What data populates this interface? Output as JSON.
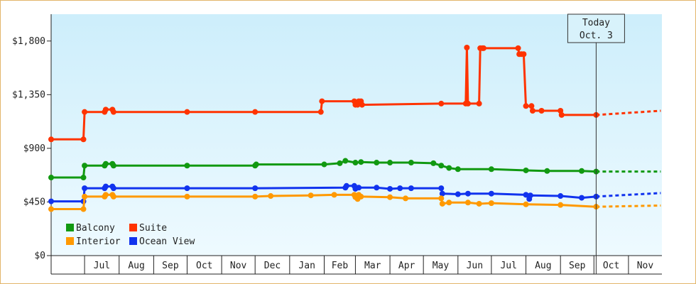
{
  "chart_data": {
    "type": "line",
    "title": "",
    "xlabel": "",
    "ylabel": "",
    "x_range": [
      "2024-06-01",
      "2025-11-30"
    ],
    "ylim": [
      0,
      2025
    ],
    "y_ticks": [
      0,
      450,
      900,
      1350,
      1800
    ],
    "y_tick_labels": [
      "$0",
      "$450",
      "$900",
      "$1,350",
      "$1,800"
    ],
    "months": [
      {
        "label": "Jul",
        "start": "2024-07-01",
        "end": "2024-07-31"
      },
      {
        "label": "Aug",
        "start": "2024-08-01",
        "end": "2024-08-31"
      },
      {
        "label": "Sep",
        "start": "2024-09-01",
        "end": "2024-09-30"
      },
      {
        "label": "Oct",
        "start": "2024-10-01",
        "end": "2024-10-31"
      },
      {
        "label": "Nov",
        "start": "2024-11-01",
        "end": "2024-11-30"
      },
      {
        "label": "Dec",
        "start": "2024-12-01",
        "end": "2024-12-31"
      },
      {
        "label": "Jan",
        "start": "2025-01-01",
        "end": "2025-01-31"
      },
      {
        "label": "Feb",
        "start": "2025-02-01",
        "end": "2025-02-28"
      },
      {
        "label": "Mar",
        "start": "2025-03-01",
        "end": "2025-03-31"
      },
      {
        "label": "Apr",
        "start": "2025-04-01",
        "end": "2025-04-30"
      },
      {
        "label": "May",
        "start": "2025-05-01",
        "end": "2025-05-31"
      },
      {
        "label": "Jun",
        "start": "2025-06-01",
        "end": "2025-06-30"
      },
      {
        "label": "Jul",
        "start": "2025-07-01",
        "end": "2025-07-31"
      },
      {
        "label": "Aug",
        "start": "2025-08-01",
        "end": "2025-08-31"
      },
      {
        "label": "Sep",
        "start": "2025-09-01",
        "end": "2025-09-30"
      },
      {
        "label": "Oct",
        "start": "2025-10-01",
        "end": "2025-10-31"
      },
      {
        "label": "Nov",
        "start": "2025-11-01",
        "end": "2025-11-30"
      }
    ],
    "today": {
      "date": "2025-10-03",
      "label_line1": "Today",
      "label_line2": "Oct. 3"
    },
    "grid": false,
    "legend_position": "bottom-left",
    "series": [
      {
        "name": "Suite",
        "color": "#ff3300",
        "points": [
          [
            "2024-06-01",
            975
          ],
          [
            "2024-06-30",
            975
          ],
          [
            "2024-07-01",
            1205
          ],
          [
            "2024-07-19",
            1205
          ],
          [
            "2024-07-20",
            1225
          ],
          [
            "2024-07-26",
            1225
          ],
          [
            "2024-07-27",
            1205
          ],
          [
            "2024-10-01",
            1205
          ],
          [
            "2024-12-01",
            1205
          ],
          [
            "2025-01-29",
            1205
          ],
          [
            "2025-01-30",
            1295
          ],
          [
            "2025-02-28",
            1295
          ],
          [
            "2025-03-01",
            1265
          ],
          [
            "2025-03-03",
            1265
          ],
          [
            "2025-03-04",
            1295
          ],
          [
            "2025-03-06",
            1295
          ],
          [
            "2025-03-07",
            1265
          ],
          [
            "2025-05-17",
            1275
          ],
          [
            "2025-06-08",
            1275
          ],
          [
            "2025-06-09",
            1745
          ],
          [
            "2025-06-10",
            1275
          ],
          [
            "2025-06-20",
            1275
          ],
          [
            "2025-06-21",
            1740
          ],
          [
            "2025-06-23",
            1740
          ],
          [
            "2025-06-24",
            1740
          ],
          [
            "2025-07-25",
            1740
          ],
          [
            "2025-07-26",
            1690
          ],
          [
            "2025-07-28",
            1690
          ],
          [
            "2025-07-30",
            1690
          ],
          [
            "2025-08-01",
            1255
          ],
          [
            "2025-08-06",
            1255
          ],
          [
            "2025-08-07",
            1215
          ],
          [
            "2025-08-15",
            1215
          ],
          [
            "2025-09-01",
            1215
          ],
          [
            "2025-09-02",
            1180
          ],
          [
            "2025-10-03",
            1180
          ]
        ],
        "projection": [
          [
            "2025-10-03",
            1180
          ],
          [
            "2025-11-30",
            1215
          ]
        ]
      },
      {
        "name": "Balcony",
        "color": "#119911",
        "points": [
          [
            "2024-06-01",
            655
          ],
          [
            "2024-06-30",
            655
          ],
          [
            "2024-07-01",
            755
          ],
          [
            "2024-07-19",
            755
          ],
          [
            "2024-07-20",
            770
          ],
          [
            "2024-07-26",
            770
          ],
          [
            "2024-07-27",
            755
          ],
          [
            "2024-10-01",
            755
          ],
          [
            "2024-12-01",
            755
          ],
          [
            "2024-12-02",
            765
          ],
          [
            "2025-02-01",
            765
          ],
          [
            "2025-02-15",
            775
          ],
          [
            "2025-02-20",
            795
          ],
          [
            "2025-03-01",
            780
          ],
          [
            "2025-03-06",
            785
          ],
          [
            "2025-03-20",
            780
          ],
          [
            "2025-04-01",
            780
          ],
          [
            "2025-04-20",
            780
          ],
          [
            "2025-05-10",
            775
          ],
          [
            "2025-05-17",
            755
          ],
          [
            "2025-05-24",
            735
          ],
          [
            "2025-06-01",
            725
          ],
          [
            "2025-07-01",
            725
          ],
          [
            "2025-08-01",
            715
          ],
          [
            "2025-08-20",
            710
          ],
          [
            "2025-09-20",
            710
          ],
          [
            "2025-10-03",
            705
          ]
        ],
        "projection": [
          [
            "2025-10-03",
            705
          ],
          [
            "2025-11-30",
            705
          ]
        ]
      },
      {
        "name": "Ocean View",
        "color": "#1133ee",
        "points": [
          [
            "2024-06-01",
            455
          ],
          [
            "2024-06-30",
            455
          ],
          [
            "2024-07-01",
            565
          ],
          [
            "2024-07-19",
            565
          ],
          [
            "2024-07-20",
            580
          ],
          [
            "2024-07-26",
            580
          ],
          [
            "2024-07-27",
            565
          ],
          [
            "2024-10-01",
            565
          ],
          [
            "2024-12-01",
            565
          ],
          [
            "2025-02-20",
            570
          ],
          [
            "2025-02-21",
            585
          ],
          [
            "2025-02-28",
            585
          ],
          [
            "2025-03-01",
            560
          ],
          [
            "2025-03-04",
            570
          ],
          [
            "2025-03-20",
            570
          ],
          [
            "2025-04-01",
            560
          ],
          [
            "2025-04-10",
            565
          ],
          [
            "2025-04-20",
            565
          ],
          [
            "2025-05-17",
            565
          ],
          [
            "2025-05-18",
            520
          ],
          [
            "2025-06-01",
            515
          ],
          [
            "2025-06-10",
            520
          ],
          [
            "2025-07-01",
            520
          ],
          [
            "2025-08-01",
            510
          ],
          [
            "2025-08-04",
            475
          ],
          [
            "2025-08-05",
            505
          ],
          [
            "2025-09-01",
            500
          ],
          [
            "2025-09-20",
            485
          ],
          [
            "2025-10-03",
            495
          ]
        ],
        "projection": [
          [
            "2025-10-03",
            495
          ],
          [
            "2025-11-30",
            525
          ]
        ]
      },
      {
        "name": "Interior",
        "color": "#ff9900",
        "points": [
          [
            "2024-06-01",
            390
          ],
          [
            "2024-06-30",
            390
          ],
          [
            "2024-07-01",
            495
          ],
          [
            "2024-07-19",
            495
          ],
          [
            "2024-07-20",
            510
          ],
          [
            "2024-07-26",
            510
          ],
          [
            "2024-07-27",
            495
          ],
          [
            "2024-10-01",
            495
          ],
          [
            "2024-12-01",
            495
          ],
          [
            "2024-12-15",
            500
          ],
          [
            "2025-01-20",
            505
          ],
          [
            "2025-02-10",
            510
          ],
          [
            "2025-02-28",
            510
          ],
          [
            "2025-03-01",
            490
          ],
          [
            "2025-03-03",
            475
          ],
          [
            "2025-03-04",
            510
          ],
          [
            "2025-03-06",
            495
          ],
          [
            "2025-04-01",
            490
          ],
          [
            "2025-04-15",
            480
          ],
          [
            "2025-05-17",
            480
          ],
          [
            "2025-05-18",
            435
          ],
          [
            "2025-05-24",
            445
          ],
          [
            "2025-06-10",
            445
          ],
          [
            "2025-06-20",
            435
          ],
          [
            "2025-07-01",
            440
          ],
          [
            "2025-08-01",
            430
          ],
          [
            "2025-09-01",
            425
          ],
          [
            "2025-10-03",
            410
          ]
        ],
        "projection": [
          [
            "2025-10-03",
            410
          ],
          [
            "2025-11-30",
            420
          ]
        ]
      }
    ],
    "legend": [
      {
        "name": "Balcony",
        "color": "#119911"
      },
      {
        "name": "Suite",
        "color": "#ff3300"
      },
      {
        "name": "Interior",
        "color": "#ff9900"
      },
      {
        "name": "Ocean View",
        "color": "#1133ee"
      }
    ]
  }
}
